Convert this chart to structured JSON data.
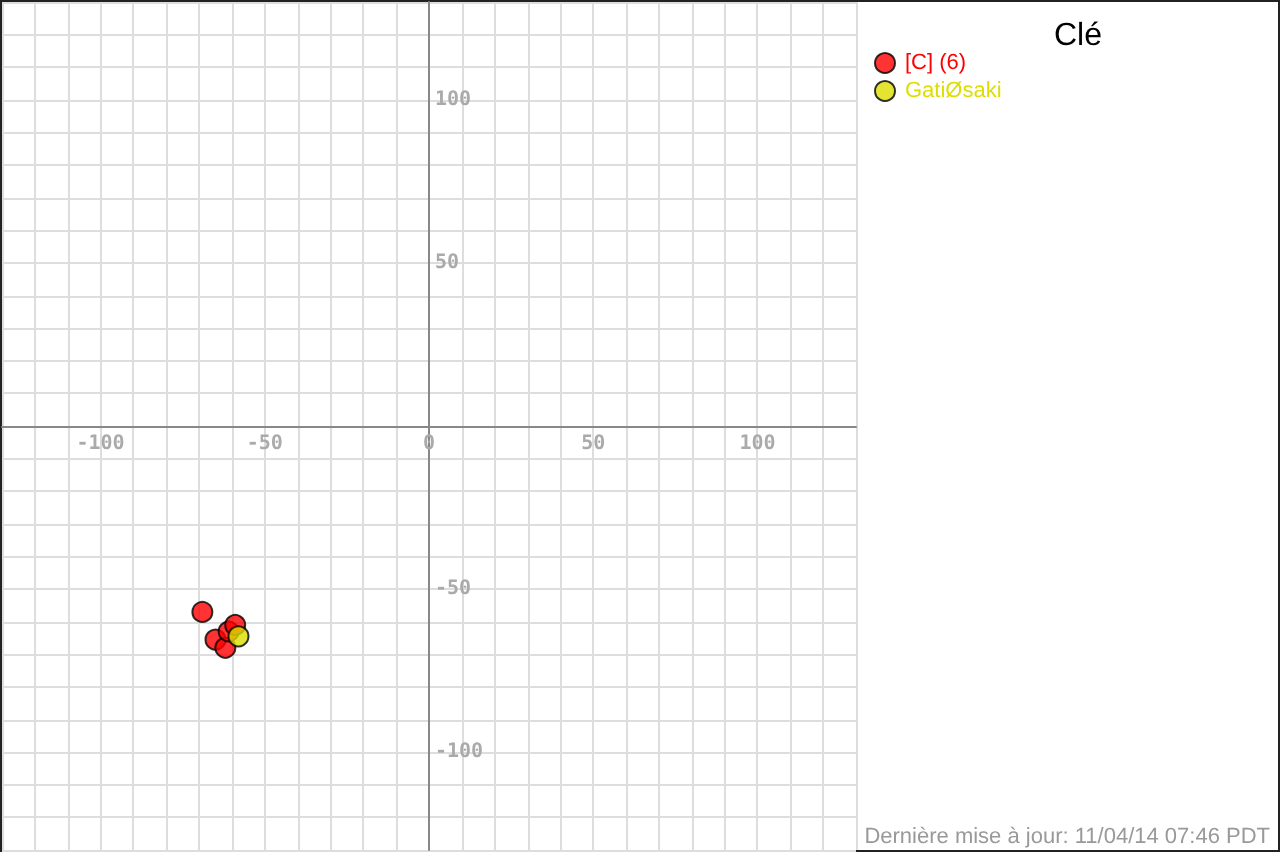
{
  "chart_data": {
    "type": "scatter",
    "legend_title": "Clé",
    "annotations": [
      "Dernière mise à jour: 11/04/14 07:46 PDT"
    ],
    "series": [
      {
        "name": "[C] (6)",
        "color": "#ff0000",
        "x": [
          -69,
          -65,
          -62,
          -61,
          -59,
          null
        ],
        "values": [
          -57,
          -65.5,
          -68,
          -63,
          -61,
          null
        ]
      },
      {
        "name": "GatiØsaki",
        "color": "#dddd00",
        "x": [
          -58
        ],
        "values": [
          -64.5
        ]
      }
    ],
    "xlim": [
      -130,
      130
    ],
    "ylim": [
      -130,
      130
    ],
    "xticks": [
      -100,
      -50,
      0,
      50,
      100
    ],
    "yticks": [
      -100,
      -50,
      50,
      100
    ],
    "grid": true,
    "legend": "right",
    "marker": "circle"
  }
}
